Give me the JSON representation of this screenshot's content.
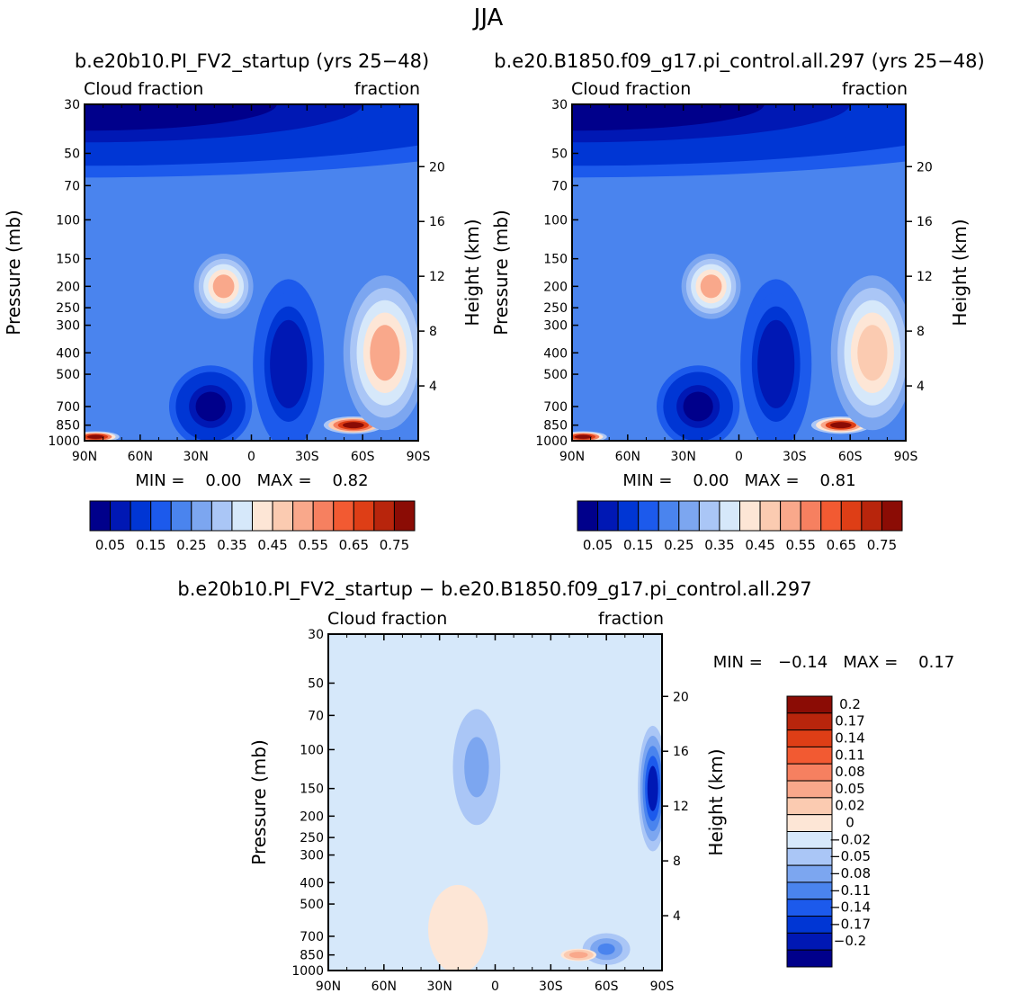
{
  "season": "JJA",
  "chart_data": [
    {
      "type": "heatmap",
      "title": "b.e20b10.PI_FV2_startup (yrs 25−48)",
      "left_label": "Cloud fraction",
      "right_label": "fraction",
      "xlabel": "",
      "ylabel": "Pressure (mb)",
      "ylabel_right": "Height (km)",
      "x_ticks": [
        "90N",
        "60N",
        "30N",
        "0",
        "30S",
        "60S",
        "90S"
      ],
      "x_range": [
        90,
        -90
      ],
      "p_ticks": [
        30,
        50,
        70,
        100,
        150,
        200,
        250,
        300,
        400,
        500,
        700,
        850,
        1000
      ],
      "p_range": [
        30,
        1000
      ],
      "z_ticks": [
        20,
        16,
        12,
        8,
        4
      ],
      "stats": "MIN =    0.00   MAX =    0.82",
      "colorbar": {
        "colors": [
          "#00008b",
          "#0018b4",
          "#0036d4",
          "#1c5aec",
          "#4a84ee",
          "#7ca6f0",
          "#aac6f6",
          "#d6e8fa",
          "#fde6d6",
          "#fbcbb1",
          "#f9a88b",
          "#f68060",
          "#f25a32",
          "#de3e16",
          "#b8250c",
          "#8b0c05"
        ],
        "labels": [
          "0.05",
          "0.15",
          "0.25",
          "0.35",
          "0.45",
          "0.55",
          "0.65",
          "0.75"
        ]
      },
      "contour_levels": [
        0.05,
        0.1,
        0.15,
        0.2,
        0.25,
        0.3,
        0.35,
        0.4,
        0.45,
        0.5,
        0.55,
        0.6,
        0.65,
        0.7,
        0.75
      ],
      "features": [
        {
          "lat": 90,
          "p": 30,
          "lat_w": 180,
          "p_w": 90,
          "value": 0.02
        },
        {
          "lat": 15,
          "p": 200,
          "lat_w": 10,
          "p_w": 60,
          "value": 0.5
        },
        {
          "lat": 22,
          "p": 700,
          "lat_w": 14,
          "p_w": 260,
          "value": 0.04
        },
        {
          "lat": -20,
          "p": 450,
          "lat_w": 12,
          "p_w": 300,
          "value": 0.05
        },
        {
          "lat": -55,
          "p": 850,
          "lat_w": 10,
          "p_w": 70,
          "value": 0.8
        },
        {
          "lat": -72,
          "p": 400,
          "lat_w": 14,
          "p_w": 250,
          "value": 0.5
        },
        {
          "lat": 84,
          "p": 960,
          "lat_w": 8,
          "p_w": 60,
          "value": 0.78
        }
      ]
    },
    {
      "type": "heatmap",
      "title": "b.e20.B1850.f09_g17.pi_control.all.297 (yrs 25−48)",
      "left_label": "Cloud fraction",
      "right_label": "fraction",
      "xlabel": "",
      "ylabel": "Pressure (mb)",
      "ylabel_right": "Height (km)",
      "x_ticks": [
        "90N",
        "60N",
        "30N",
        "0",
        "30S",
        "60S",
        "90S"
      ],
      "x_range": [
        90,
        -90
      ],
      "p_ticks": [
        30,
        50,
        70,
        100,
        150,
        200,
        250,
        300,
        400,
        500,
        700,
        850,
        1000
      ],
      "p_range": [
        30,
        1000
      ],
      "z_ticks": [
        20,
        16,
        12,
        8,
        4
      ],
      "stats": "MIN =    0.00   MAX =    0.81",
      "colorbar": {
        "colors": [
          "#00008b",
          "#0018b4",
          "#0036d4",
          "#1c5aec",
          "#4a84ee",
          "#7ca6f0",
          "#aac6f6",
          "#d6e8fa",
          "#fde6d6",
          "#fbcbb1",
          "#f9a88b",
          "#f68060",
          "#f25a32",
          "#de3e16",
          "#b8250c",
          "#8b0c05"
        ],
        "labels": [
          "0.05",
          "0.15",
          "0.25",
          "0.35",
          "0.45",
          "0.55",
          "0.65",
          "0.75"
        ]
      },
      "contour_levels": [
        0.05,
        0.1,
        0.15,
        0.2,
        0.25,
        0.3,
        0.35,
        0.4,
        0.45,
        0.5,
        0.55,
        0.6,
        0.65,
        0.7,
        0.75
      ],
      "features": [
        {
          "lat": 90,
          "p": 30,
          "lat_w": 180,
          "p_w": 90,
          "value": 0.02
        },
        {
          "lat": 15,
          "p": 200,
          "lat_w": 10,
          "p_w": 60,
          "value": 0.5
        },
        {
          "lat": 22,
          "p": 700,
          "lat_w": 14,
          "p_w": 260,
          "value": 0.04
        },
        {
          "lat": -20,
          "p": 450,
          "lat_w": 12,
          "p_w": 300,
          "value": 0.05
        },
        {
          "lat": -55,
          "p": 850,
          "lat_w": 10,
          "p_w": 70,
          "value": 0.76
        },
        {
          "lat": -72,
          "p": 400,
          "lat_w": 14,
          "p_w": 250,
          "value": 0.45
        },
        {
          "lat": 84,
          "p": 960,
          "lat_w": 8,
          "p_w": 60,
          "value": 0.78
        }
      ]
    },
    {
      "type": "heatmap",
      "title": "b.e20b10.PI_FV2_startup − b.e20.B1850.f09_g17.pi_control.all.297",
      "left_label": "Cloud fraction",
      "right_label": "fraction",
      "xlabel": "",
      "ylabel": "Pressure (mb)",
      "ylabel_right": "Height (km)",
      "x_ticks": [
        "90N",
        "60N",
        "30N",
        "0",
        "30S",
        "60S",
        "90S"
      ],
      "x_range": [
        90,
        -90
      ],
      "p_ticks": [
        30,
        50,
        70,
        100,
        150,
        200,
        250,
        300,
        400,
        500,
        700,
        850,
        1000
      ],
      "p_range": [
        30,
        1000
      ],
      "z_ticks": [
        20,
        16,
        12,
        8,
        4
      ],
      "stats": "MIN =   −0.14   MAX =    0.17",
      "colorbar": {
        "colors": [
          "#8b0c05",
          "#b8250c",
          "#de3e16",
          "#f25a32",
          "#f68060",
          "#f9a88b",
          "#fbcbb1",
          "#fde6d6",
          "#d6e8fa",
          "#aac6f6",
          "#7ca6f0",
          "#4a84ee",
          "#1c5aec",
          "#0036d4",
          "#0018b4",
          "#00008b"
        ],
        "labels": [
          "0.2",
          "0.17",
          "0.14",
          "0.11",
          "0.08",
          "0.05",
          "0.02",
          "0",
          "−0.02",
          "−0.05",
          "−0.08",
          "−0.11",
          "−0.14",
          "−0.17",
          "−0.2"
        ]
      },
      "contour_levels": [
        -0.2,
        -0.17,
        -0.14,
        -0.11,
        -0.08,
        -0.05,
        -0.02,
        0,
        0.02,
        0.05,
        0.08,
        0.11,
        0.14,
        0.17,
        0.2
      ],
      "features": [
        {
          "lat": 90,
          "p": 30,
          "lat_w": 180,
          "p_w": 200,
          "value": 0.01
        },
        {
          "lat": 10,
          "p": 120,
          "lat_w": 8,
          "p_w": 60,
          "value": 0.06
        },
        {
          "lat": 20,
          "p": 650,
          "lat_w": 12,
          "p_w": 300,
          "value": -0.02
        },
        {
          "lat": -60,
          "p": 800,
          "lat_w": 8,
          "p_w": 120,
          "value": 0.08
        },
        {
          "lat": -85,
          "p": 150,
          "lat_w": 5,
          "p_w": 80,
          "value": 0.17
        },
        {
          "lat": -45,
          "p": 850,
          "lat_w": 6,
          "p_w": 50,
          "value": -0.08
        }
      ]
    }
  ]
}
